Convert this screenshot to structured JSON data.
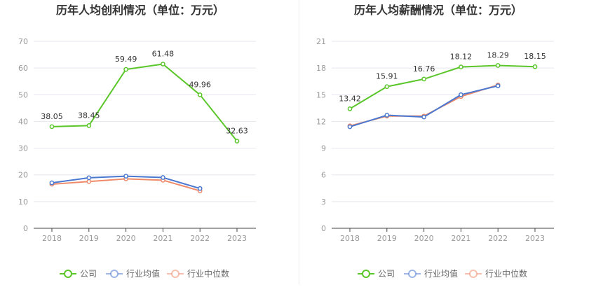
{
  "chart_data": [
    {
      "type": "line",
      "title": "历年人均创利情况（单位：万元）",
      "xlabel": "",
      "ylabel": "",
      "categories": [
        "2018",
        "2019",
        "2020",
        "2021",
        "2022",
        "2023"
      ],
      "ylim": [
        0,
        70
      ],
      "yticks": [
        0,
        10,
        20,
        30,
        40,
        50,
        60,
        70
      ],
      "grid": true,
      "legend_position": "bottom",
      "series": [
        {
          "name": "公司",
          "color": "#5bc62a",
          "values": [
            38.05,
            38.45,
            59.49,
            61.48,
            49.96,
            32.63
          ],
          "labels": [
            "38.05",
            "38.45",
            "59.49",
            "61.48",
            "49.96",
            "32.63"
          ]
        },
        {
          "name": "行业均值",
          "color": "#4a78d0",
          "values": [
            17.0,
            18.9,
            19.5,
            19.0,
            14.9,
            null
          ]
        },
        {
          "name": "行业中位数",
          "color": "#ee8a6a",
          "values": [
            16.5,
            17.5,
            18.5,
            18.0,
            14.0,
            null
          ]
        }
      ]
    },
    {
      "type": "line",
      "title": "历年人均薪酬情况（单位：万元）",
      "xlabel": "",
      "ylabel": "",
      "categories": [
        "2018",
        "2019",
        "2020",
        "2021",
        "2022",
        "2023"
      ],
      "ylim": [
        0,
        21
      ],
      "yticks": [
        0,
        3,
        6,
        9,
        12,
        15,
        18,
        21
      ],
      "grid": true,
      "legend_position": "bottom",
      "series": [
        {
          "name": "公司",
          "color": "#5bc62a",
          "values": [
            13.42,
            15.91,
            16.76,
            18.12,
            18.29,
            18.15
          ],
          "labels": [
            "13.42",
            "15.91",
            "16.76",
            "18.12",
            "18.29",
            "18.15"
          ]
        },
        {
          "name": "行业均值",
          "color": "#4a78d0",
          "values": [
            11.4,
            12.7,
            12.5,
            15.0,
            16.0,
            null
          ]
        },
        {
          "name": "行业中位数",
          "color": "#ee8a6a",
          "values": [
            11.5,
            12.6,
            12.6,
            14.8,
            16.1,
            null
          ]
        }
      ]
    }
  ]
}
